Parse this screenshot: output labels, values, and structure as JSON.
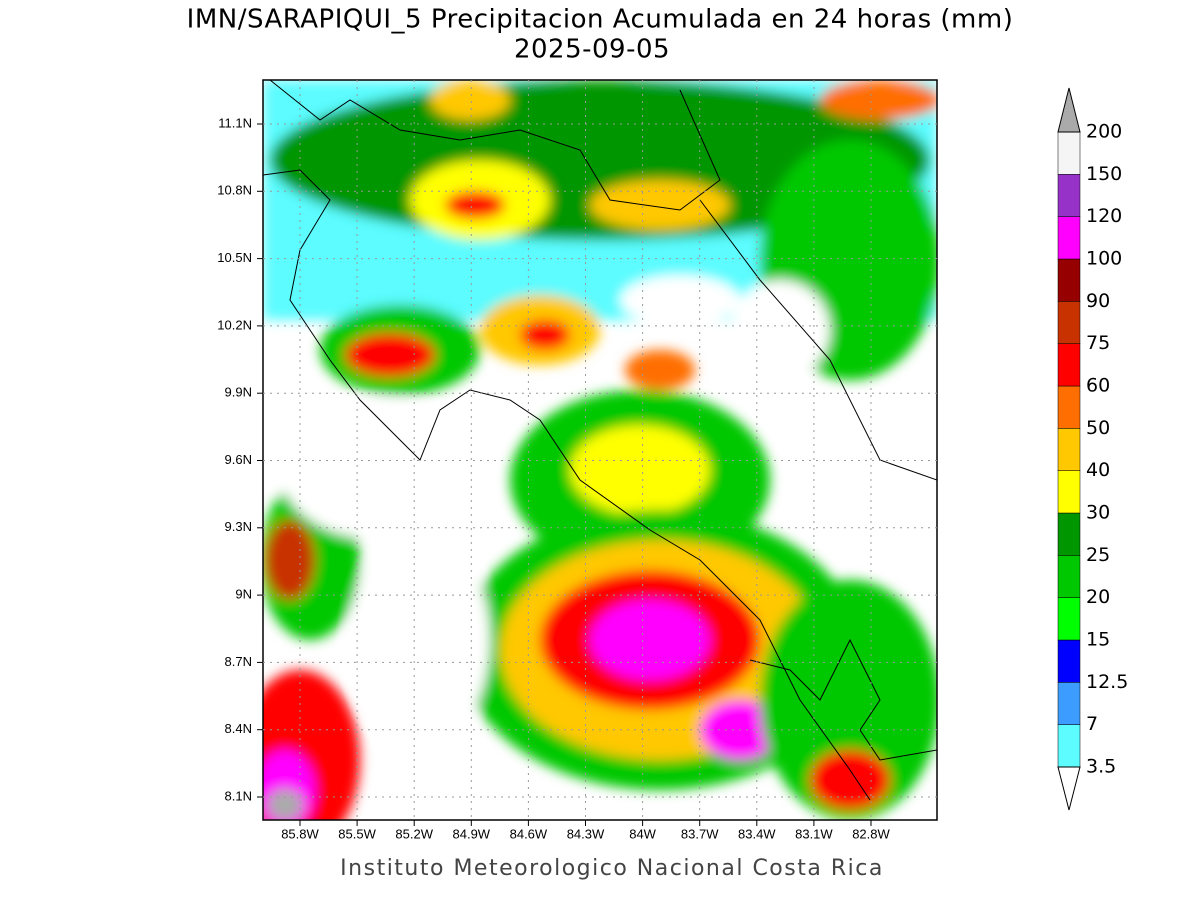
{
  "header": {
    "title": "IMN/SARAPIQUI_5 Precipitacion Acumulada en 24 horas (mm)",
    "date": "2025-09-05"
  },
  "map": {
    "lon_ticks": [
      "85.8W",
      "85.5W",
      "85.2W",
      "84.9W",
      "84.6W",
      "84.3W",
      "84W",
      "83.7W",
      "83.4W",
      "83.1W",
      "82.8W"
    ],
    "lat_ticks": [
      "11.1N",
      "10.8N",
      "10.5N",
      "10.2N",
      "9.9N",
      "9.6N",
      "9.3N",
      "9N",
      "8.7N",
      "8.4N",
      "8.1N"
    ]
  },
  "colorbar": {
    "labels": [
      "3.5",
      "7",
      "12.5",
      "15",
      "20",
      "25",
      "30",
      "40",
      "50",
      "60",
      "75",
      "90",
      "100",
      "120",
      "150",
      "200"
    ],
    "colors": [
      "#5cfcff",
      "#3c9cff",
      "#0000ff",
      "#00ff00",
      "#00c800",
      "#009600",
      "#ffff00",
      "#ffc800",
      "#ff6e00",
      "#ff0000",
      "#c83200",
      "#960000",
      "#ff00ff",
      "#9632c8",
      "#f5f5f5"
    ],
    "below_color": "#ffffff",
    "above_color": "#aaaaaa"
  },
  "footer": "Instituto Meteorologico Nacional Costa Rica"
}
